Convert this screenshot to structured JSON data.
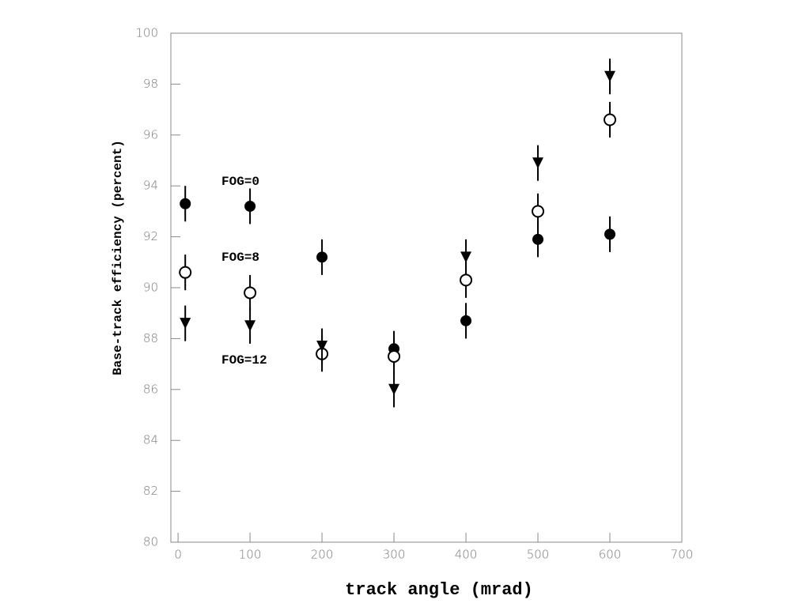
{
  "chart_data": {
    "type": "scatter",
    "x_label": "track angle (mrad)",
    "y_label": "Base-track efficiency (percent)",
    "xlim": [
      -10,
      700
    ],
    "ylim": [
      80,
      100
    ],
    "xticks": [
      0,
      100,
      200,
      300,
      400,
      500,
      600,
      700
    ],
    "yticks": [
      80,
      82,
      84,
      86,
      88,
      90,
      92,
      94,
      96,
      98,
      100
    ],
    "series": [
      {
        "name": "FOG=0",
        "color": "#000000",
        "marker": "filled-circle",
        "x": [
          10,
          100,
          200,
          300,
          400,
          500,
          600
        ],
        "values": [
          93.3,
          93.2,
          91.2,
          87.6,
          88.7,
          91.9,
          92.1
        ],
        "errors": [
          0.7,
          0.7,
          0.7,
          0.7,
          0.7,
          0.7,
          0.7
        ]
      },
      {
        "name": "FOG=8",
        "color": "#000000",
        "marker": "open-circle",
        "x": [
          10,
          100,
          200,
          300,
          400,
          500,
          600
        ],
        "values": [
          90.6,
          89.8,
          87.4,
          87.3,
          90.3,
          93.0,
          96.6
        ],
        "errors": [
          0.7,
          0.7,
          0.7,
          0.7,
          0.7,
          0.7,
          0.7
        ]
      },
      {
        "name": "FOG=12",
        "color": "#000000",
        "marker": "triangle-down",
        "x": [
          10,
          100,
          200,
          300,
          400,
          500,
          600
        ],
        "values": [
          88.6,
          88.5,
          87.7,
          86.0,
          91.2,
          94.9,
          98.3
        ],
        "errors": [
          0.7,
          0.7,
          0.7,
          0.7,
          0.7,
          0.7,
          0.7
        ]
      }
    ]
  }
}
